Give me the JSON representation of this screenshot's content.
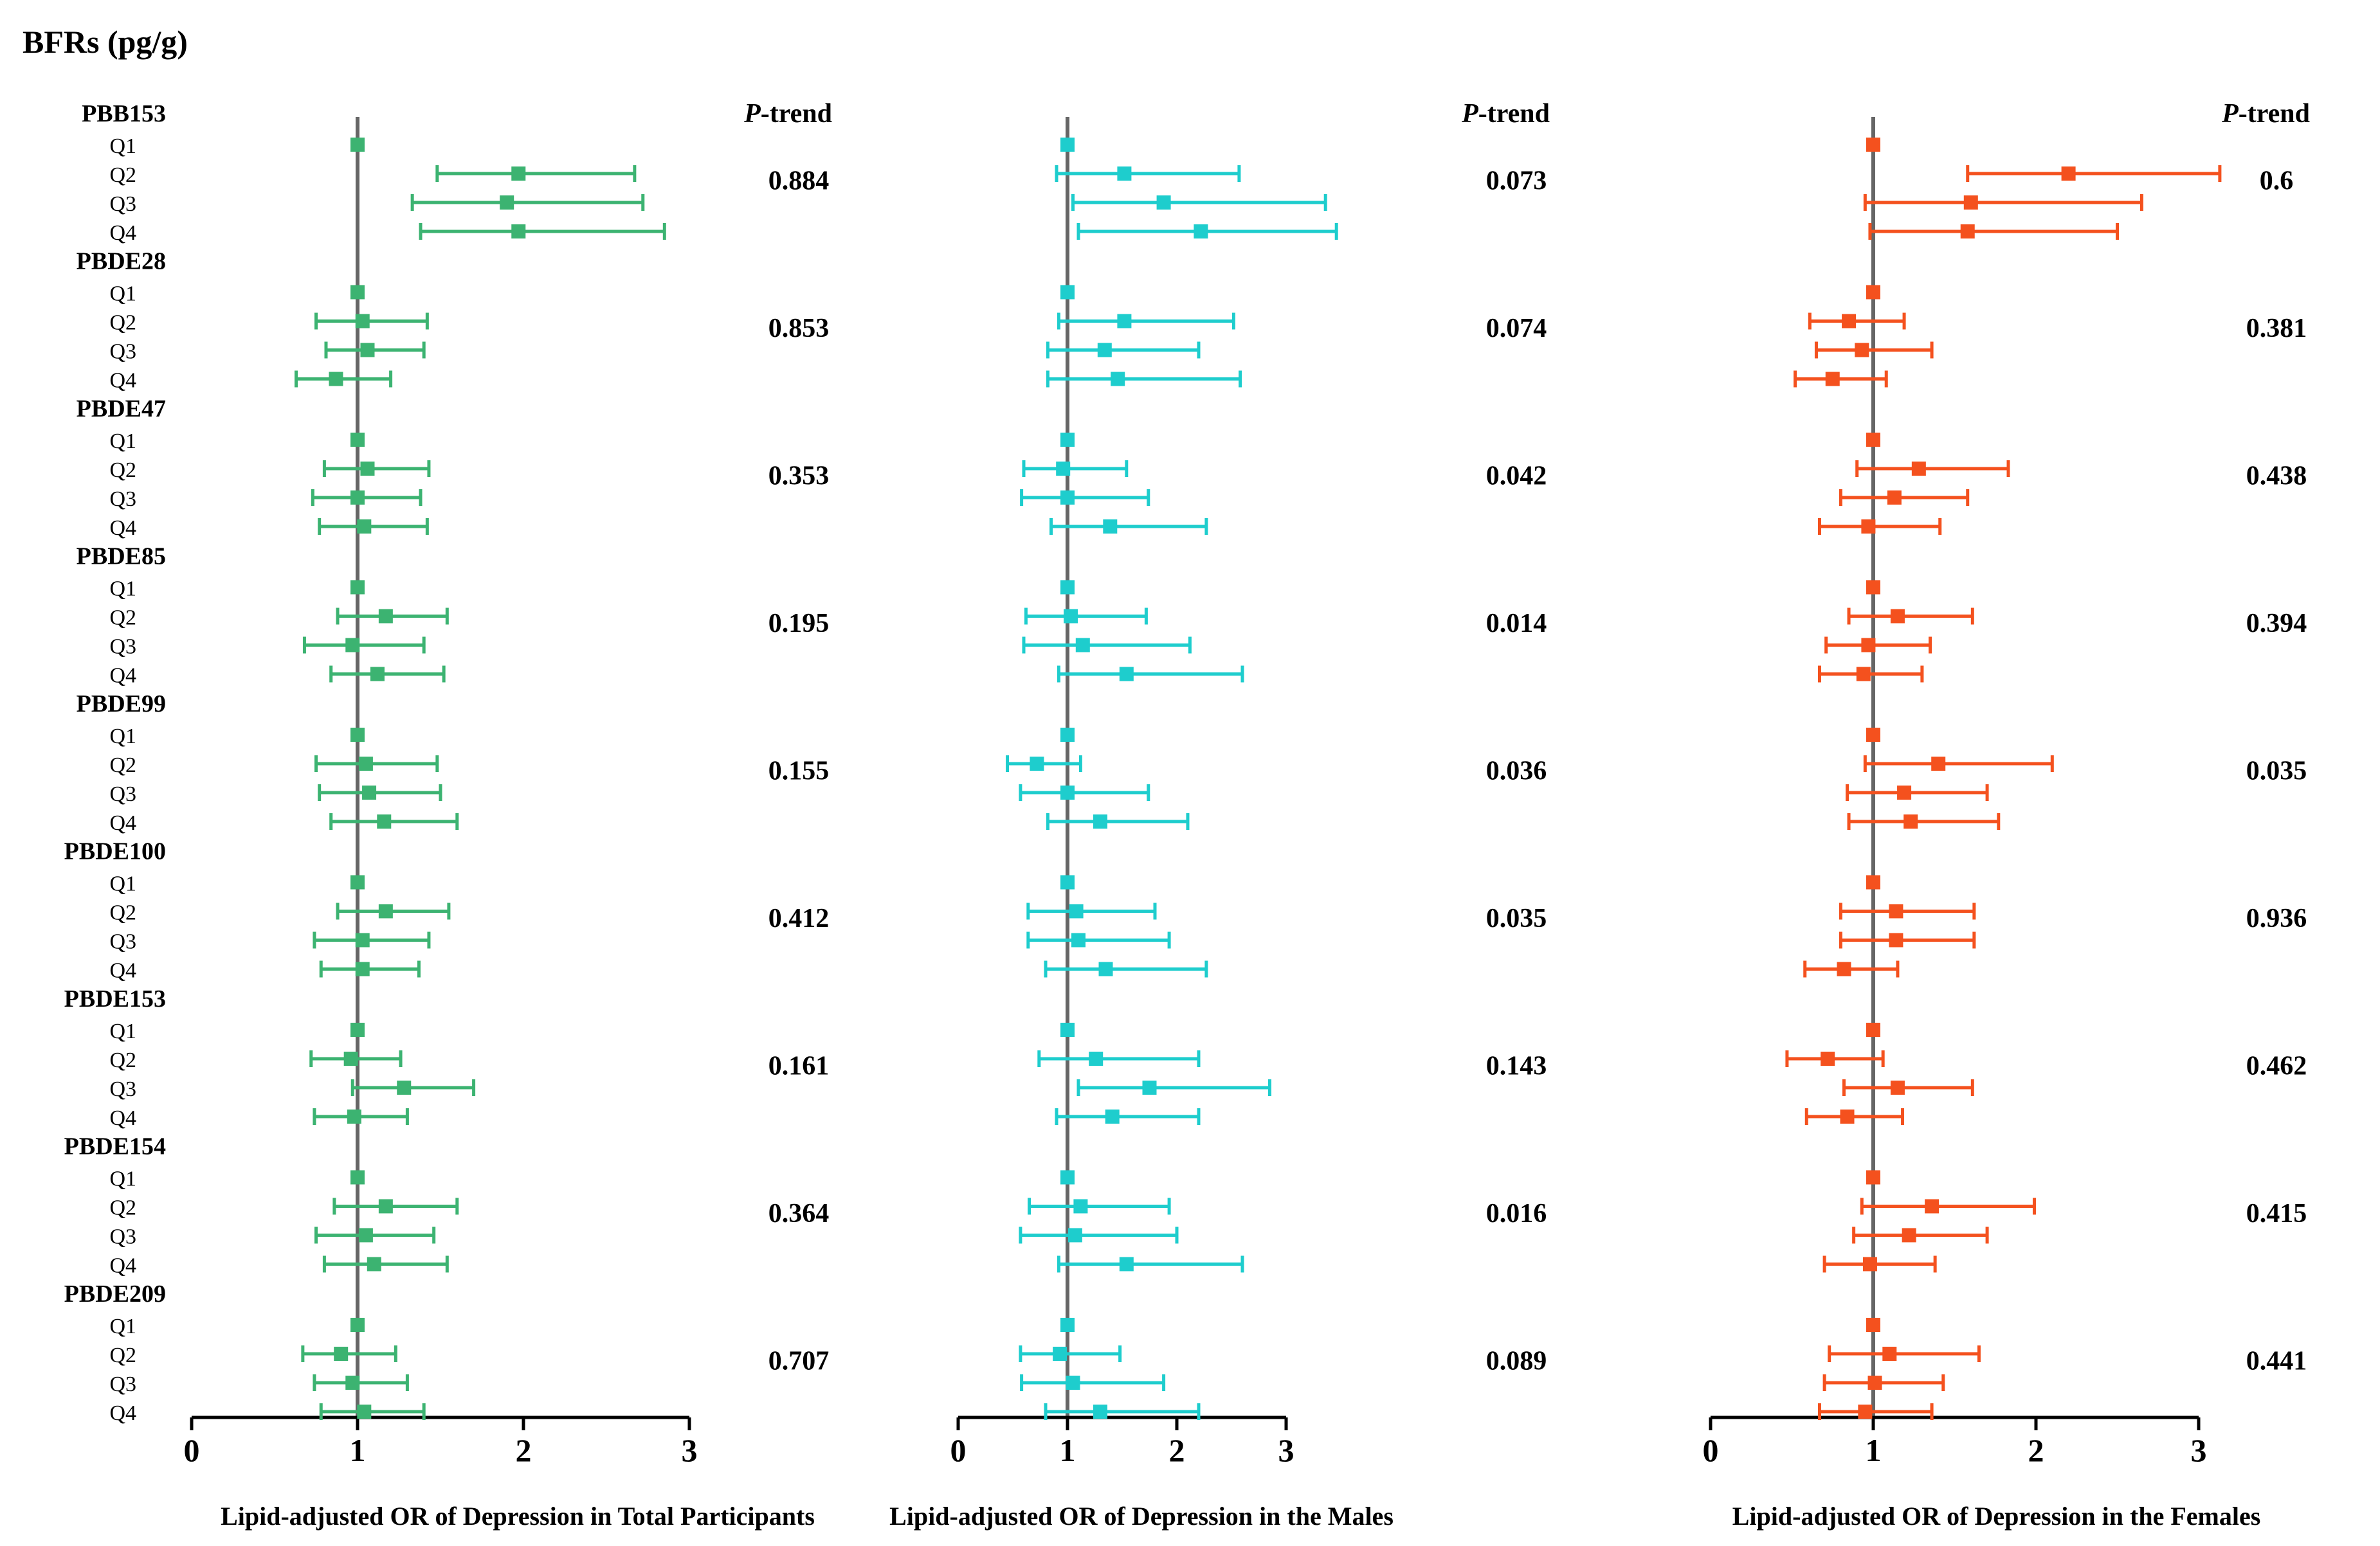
{
  "figure_title": "BFRs (pg/g)",
  "ptrend_label_italic": "P",
  "ptrend_label_rest": "-trend",
  "quartiles": [
    "Q1",
    "Q2",
    "Q3",
    "Q4"
  ],
  "colors": {
    "total": "#3cb371",
    "males": "#1ecdcd",
    "females": "#f4511e",
    "axis": "#000000",
    "refline": "#666666"
  },
  "chart_data": [
    {
      "type": "forest",
      "panel": "total",
      "xlabel": "Lipid-adjusted OR of Depression in Total Participants",
      "xlim": [
        0,
        3
      ],
      "xticks": [
        0,
        1,
        2,
        3
      ],
      "reference_line": 1,
      "groups": [
        {
          "name": "PBB153",
          "p_trend": "0.884",
          "or": [
            1,
            1.97,
            1.9,
            1.97
          ],
          "lo": [
            1,
            1.48,
            1.33,
            1.38
          ],
          "hi": [
            1,
            2.67,
            2.72,
            2.85
          ]
        },
        {
          "name": "PBDE28",
          "p_trend": "0.853",
          "or": [
            1,
            1.03,
            1.06,
            0.87
          ],
          "lo": [
            1,
            0.75,
            0.81,
            0.63
          ],
          "hi": [
            1,
            1.42,
            1.4,
            1.2
          ]
        },
        {
          "name": "PBDE47",
          "p_trend": "0.353",
          "or": [
            1,
            1.06,
            1.0,
            1.04
          ],
          "lo": [
            1,
            0.8,
            0.73,
            0.77
          ],
          "hi": [
            1,
            1.43,
            1.38,
            1.42
          ]
        },
        {
          "name": "PBDE85",
          "p_trend": "0.195",
          "or": [
            1,
            1.17,
            0.97,
            1.12
          ],
          "lo": [
            1,
            0.88,
            0.68,
            0.84
          ],
          "hi": [
            1,
            1.54,
            1.4,
            1.52
          ]
        },
        {
          "name": "PBDE99",
          "p_trend": "0.155",
          "or": [
            1,
            1.05,
            1.07,
            1.16
          ],
          "lo": [
            1,
            0.75,
            0.77,
            0.84
          ],
          "hi": [
            1,
            1.48,
            1.5,
            1.6
          ]
        },
        {
          "name": "PBDE100",
          "p_trend": "0.412",
          "or": [
            1,
            1.17,
            1.03,
            1.03
          ],
          "lo": [
            1,
            0.88,
            0.74,
            0.78
          ],
          "hi": [
            1,
            1.55,
            1.43,
            1.37
          ]
        },
        {
          "name": "PBDE153",
          "p_trend": "0.161",
          "or": [
            1,
            0.96,
            1.28,
            0.98
          ],
          "lo": [
            1,
            0.72,
            0.97,
            0.74
          ],
          "hi": [
            1,
            1.26,
            1.7,
            1.3
          ]
        },
        {
          "name": "PBDE154",
          "p_trend": "0.364",
          "or": [
            1,
            1.17,
            1.05,
            1.1
          ],
          "lo": [
            1,
            0.86,
            0.75,
            0.8
          ],
          "hi": [
            1,
            1.6,
            1.46,
            1.54
          ]
        },
        {
          "name": "PBDE209",
          "p_trend": "0.707",
          "or": [
            1,
            0.9,
            0.97,
            1.04
          ],
          "lo": [
            1,
            0.67,
            0.74,
            0.78
          ],
          "hi": [
            1,
            1.23,
            1.3,
            1.4
          ]
        }
      ]
    },
    {
      "type": "forest",
      "panel": "males",
      "xlabel": "Lipid-adjusted OR of Depression in the Males",
      "xlim": [
        0,
        3
      ],
      "xticks": [
        0,
        1,
        2,
        3
      ],
      "reference_line": 1,
      "groups": [
        {
          "name": "PBB153",
          "p_trend": "0.073",
          "or": [
            1,
            1.52,
            1.88,
            2.22
          ],
          "lo": [
            1,
            0.9,
            1.05,
            1.1
          ],
          "hi": [
            1,
            2.57,
            3.36,
            3.46
          ]
        },
        {
          "name": "PBDE28",
          "p_trend": "0.074",
          "or": [
            1,
            1.52,
            1.34,
            1.46
          ],
          "lo": [
            1,
            0.92,
            0.82,
            0.82
          ],
          "hi": [
            1,
            2.52,
            2.2,
            2.58
          ]
        },
        {
          "name": "PBDE47",
          "p_trend": "0.042",
          "or": [
            1,
            0.96,
            1.0,
            1.39
          ],
          "lo": [
            1,
            0.6,
            0.58,
            0.85
          ],
          "hi": [
            1,
            1.54,
            1.74,
            2.27
          ]
        },
        {
          "name": "PBDE85",
          "p_trend": "0.014",
          "or": [
            1,
            1.03,
            1.14,
            1.54
          ],
          "lo": [
            1,
            0.62,
            0.6,
            0.92
          ],
          "hi": [
            1,
            1.72,
            2.12,
            2.6
          ]
        },
        {
          "name": "PBDE99",
          "p_trend": "0.036",
          "or": [
            1,
            0.72,
            1.0,
            1.3
          ],
          "lo": [
            1,
            0.45,
            0.57,
            0.82
          ],
          "hi": [
            1,
            1.12,
            1.74,
            2.1
          ]
        },
        {
          "name": "PBDE100",
          "p_trend": "0.035",
          "or": [
            1,
            1.08,
            1.1,
            1.35
          ],
          "lo": [
            1,
            0.64,
            0.64,
            0.8
          ],
          "hi": [
            1,
            1.8,
            1.93,
            2.27
          ]
        },
        {
          "name": "PBDE153",
          "p_trend": "0.143",
          "or": [
            1,
            1.26,
            1.75,
            1.41
          ],
          "lo": [
            1,
            0.74,
            1.1,
            0.9
          ],
          "hi": [
            1,
            2.2,
            2.85,
            2.2
          ]
        },
        {
          "name": "PBDE154",
          "p_trend": "0.016",
          "or": [
            1,
            1.12,
            1.07,
            1.54
          ],
          "lo": [
            1,
            0.65,
            0.57,
            0.92
          ],
          "hi": [
            1,
            1.93,
            2.0,
            2.6
          ]
        },
        {
          "name": "PBDE209",
          "p_trend": "0.089",
          "or": [
            1,
            0.93,
            1.05,
            1.3
          ],
          "lo": [
            1,
            0.57,
            0.58,
            0.8
          ],
          "hi": [
            1,
            1.48,
            1.88,
            2.2
          ]
        }
      ]
    },
    {
      "type": "forest",
      "panel": "females",
      "xlabel": "Lipid-adjusted OR of Depression in the Females",
      "xlim": [
        0,
        3
      ],
      "xticks": [
        0,
        1,
        2,
        3
      ],
      "reference_line": 1,
      "groups": [
        {
          "name": "PBB153",
          "p_trend": "0.6",
          "or": [
            1,
            2.2,
            1.6,
            1.58
          ],
          "lo": [
            1,
            1.58,
            0.95,
            0.98
          ],
          "hi": [
            1,
            3.13,
            2.65,
            2.5
          ]
        },
        {
          "name": "PBDE28",
          "p_trend": "0.381",
          "or": [
            1,
            0.85,
            0.93,
            0.75
          ],
          "lo": [
            1,
            0.61,
            0.65,
            0.52
          ],
          "hi": [
            1,
            1.19,
            1.36,
            1.08
          ]
        },
        {
          "name": "PBDE47",
          "p_trend": "0.438",
          "or": [
            1,
            1.28,
            1.13,
            0.97
          ],
          "lo": [
            1,
            0.9,
            0.8,
            0.67
          ],
          "hi": [
            1,
            1.83,
            1.58,
            1.41
          ]
        },
        {
          "name": "PBDE85",
          "p_trend": "0.394",
          "or": [
            1,
            1.15,
            0.97,
            0.94
          ],
          "lo": [
            1,
            0.85,
            0.71,
            0.67
          ],
          "hi": [
            1,
            1.61,
            1.35,
            1.3
          ]
        },
        {
          "name": "PBDE99",
          "p_trend": "0.035",
          "or": [
            1,
            1.4,
            1.19,
            1.23
          ],
          "lo": [
            1,
            0.95,
            0.84,
            0.85
          ],
          "hi": [
            1,
            2.1,
            1.7,
            1.77
          ]
        },
        {
          "name": "PBDE100",
          "p_trend": "0.936",
          "or": [
            1,
            1.14,
            1.14,
            0.82
          ],
          "lo": [
            1,
            0.8,
            0.8,
            0.58
          ],
          "hi": [
            1,
            1.62,
            1.62,
            1.15
          ]
        },
        {
          "name": "PBDE153",
          "p_trend": "0.462",
          "or": [
            1,
            0.72,
            1.15,
            0.84
          ],
          "lo": [
            1,
            0.47,
            0.82,
            0.59
          ],
          "hi": [
            1,
            1.06,
            1.61,
            1.18
          ]
        },
        {
          "name": "PBDE154",
          "p_trend": "0.415",
          "or": [
            1,
            1.36,
            1.22,
            0.98
          ],
          "lo": [
            1,
            0.93,
            0.88,
            0.7
          ],
          "hi": [
            1,
            1.99,
            1.7,
            1.38
          ]
        },
        {
          "name": "PBDE209",
          "p_trend": "0.441",
          "or": [
            1,
            1.1,
            1.01,
            0.95
          ],
          "lo": [
            1,
            0.73,
            0.7,
            0.67
          ],
          "hi": [
            1,
            1.65,
            1.43,
            1.36
          ]
        }
      ]
    }
  ]
}
